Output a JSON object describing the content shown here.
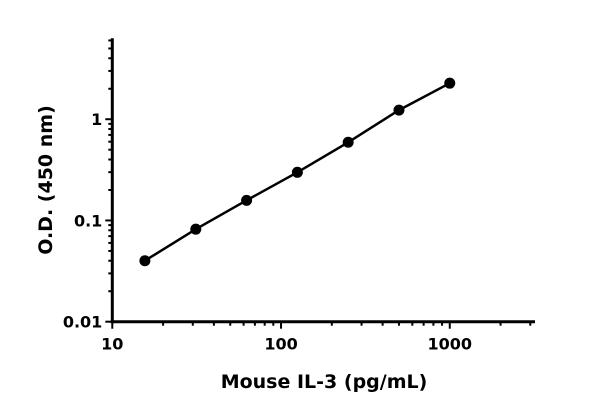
{
  "chart_data": {
    "type": "scatter",
    "title": "",
    "xlabel": "Mouse IL-3 (pg/mL)",
    "ylabel": "O.D. (450 nm)",
    "xscale": "log",
    "yscale": "log",
    "xlim": [
      10,
      3200
    ],
    "ylim": [
      0.01,
      6.3
    ],
    "xticks": [
      {
        "value": 10,
        "label": "10"
      },
      {
        "value": 100,
        "label": "100"
      },
      {
        "value": 1000,
        "label": "1000"
      }
    ],
    "yticks": [
      {
        "value": 0.01,
        "label": "0.01"
      },
      {
        "value": 0.1,
        "label": "0.1"
      },
      {
        "value": 1,
        "label": "1"
      }
    ],
    "grid": false,
    "series": [
      {
        "x": [
          15.6,
          31.25,
          62.5,
          125,
          250,
          500,
          1000
        ],
        "y": [
          0.04,
          0.082,
          0.158,
          0.299,
          0.592,
          1.23,
          2.27
        ],
        "color": "#000000",
        "marker": "circle",
        "line": true
      }
    ]
  }
}
